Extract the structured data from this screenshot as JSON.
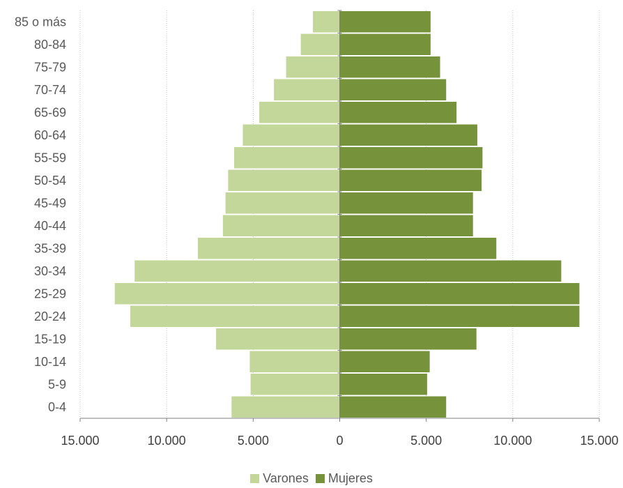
{
  "chart_data": {
    "type": "bar",
    "orientation": "horizontal",
    "subtype": "population-pyramid",
    "categories": [
      "0-4",
      "5-9",
      "10-14",
      "15-19",
      "20-24",
      "25-29",
      "30-34",
      "35-39",
      "40-44",
      "45-49",
      "50-54",
      "55-59",
      "60-64",
      "65-69",
      "70-74",
      "75-79",
      "80-84",
      "85 o más"
    ],
    "series": [
      {
        "name": "Varones",
        "color": "#c4d79b",
        "values": [
          6250,
          5150,
          5200,
          7150,
          12100,
          13000,
          11850,
          8200,
          6750,
          6600,
          6450,
          6100,
          5600,
          4650,
          3800,
          3100,
          2250,
          1550
        ]
      },
      {
        "name": "Mujeres",
        "color": "#76933c",
        "values": [
          6150,
          5050,
          5200,
          7900,
          13850,
          13850,
          12800,
          9050,
          7700,
          7700,
          8200,
          8250,
          7950,
          6750,
          6150,
          5800,
          5250,
          5250
        ]
      }
    ],
    "x_ticks": [
      -15000,
      -10000,
      -5000,
      0,
      5000,
      10000,
      15000
    ],
    "x_tick_labels": [
      "15.000",
      "10.000",
      "5.000",
      "0",
      "5.000",
      "10.000",
      "15.000"
    ],
    "xlim": [
      -15000,
      15000
    ],
    "grid": "vertical dotted",
    "legend": "bottom-center",
    "title": "",
    "xlabel": "",
    "ylabel": ""
  }
}
